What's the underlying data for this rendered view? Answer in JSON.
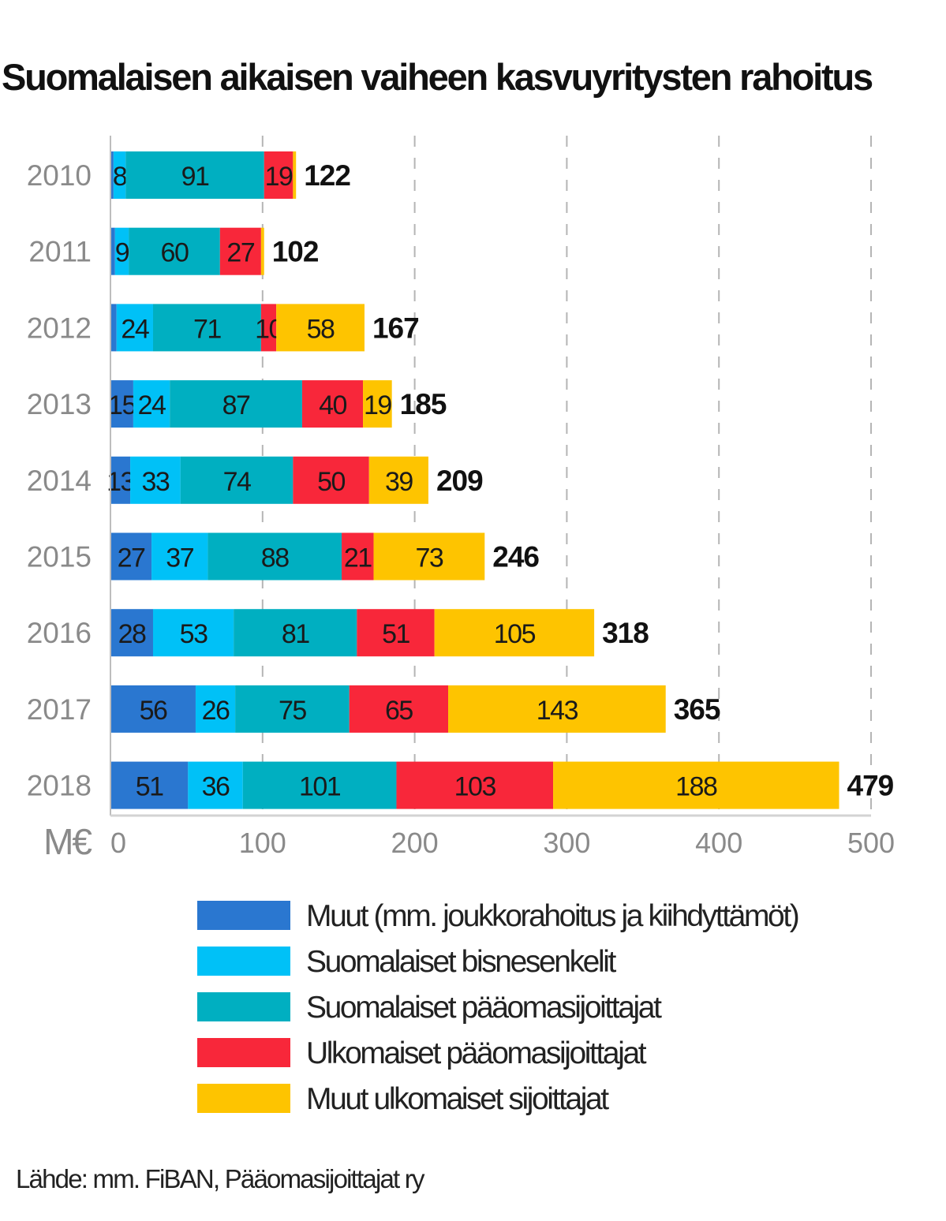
{
  "title": "Suomalaisen aikaisen vaiheen kasvuyritysten rahoitus",
  "source": "Lähde: mm. FiBAN, Pääomasijoittajat ry",
  "colors": {
    "muut": "#2a77d0",
    "bisnesenkelit": "#00c1f7",
    "paaomasijoittajat": "#00afc1",
    "ulkomaiset_paaoma": "#f8273a",
    "muut_ulkomaiset": "#fec400"
  },
  "chart_data": {
    "type": "bar",
    "orientation": "horizontal",
    "stacked": true,
    "title": "Suomalaisen aikaisen vaiheen kasvuyritysten rahoitus",
    "unit_label": "M€",
    "categories": [
      "2010",
      "2011",
      "2012",
      "2013",
      "2014",
      "2015",
      "2016",
      "2017",
      "2018"
    ],
    "series": [
      {
        "name": "Muut (mm. joukkorahoitus ja kiihdyttämöt)",
        "color": "#2a77d0",
        "values": [
          2,
          3,
          4,
          15,
          13,
          27,
          28,
          56,
          51
        ],
        "labels": [
          "",
          "",
          "",
          "15",
          "13",
          "27",
          "28",
          "56",
          "51"
        ]
      },
      {
        "name": "Suomalaiset bisnesenkelit",
        "color": "#00c1f7",
        "values": [
          8,
          9,
          24,
          24,
          33,
          37,
          53,
          26,
          36
        ],
        "labels": [
          "8",
          "9",
          "24",
          "24",
          "33",
          "37",
          "53",
          "26",
          "36"
        ]
      },
      {
        "name": "Suomalaiset pääomasijoittajat",
        "color": "#00afc1",
        "values": [
          91,
          60,
          71,
          87,
          74,
          88,
          81,
          75,
          101
        ],
        "labels": [
          "91",
          "60",
          "71",
          "87",
          "74",
          "88",
          "81",
          "75",
          "101"
        ]
      },
      {
        "name": "Ulkomaiset pääomasijoittajat",
        "color": "#f8273a",
        "values": [
          19,
          27,
          10,
          40,
          50,
          21,
          51,
          65,
          103
        ],
        "labels": [
          "19",
          "27",
          "10",
          "40",
          "50",
          "21",
          "51",
          "65",
          "103"
        ]
      },
      {
        "name": "Muut ulkomaiset sijoittajat",
        "color": "#fec400",
        "values": [
          2,
          2,
          58,
          19,
          39,
          73,
          105,
          143,
          188
        ],
        "labels": [
          "",
          "",
          "58",
          "19",
          "39",
          "73",
          "105",
          "143",
          "188"
        ]
      }
    ],
    "totals": [
      "122",
      "102",
      "167",
      "185",
      "209",
      "246",
      "318",
      "365",
      "479"
    ],
    "xlim": [
      0,
      500
    ],
    "xticks": [
      "0",
      "100",
      "200",
      "300",
      "400",
      "500"
    ],
    "grid": true
  }
}
